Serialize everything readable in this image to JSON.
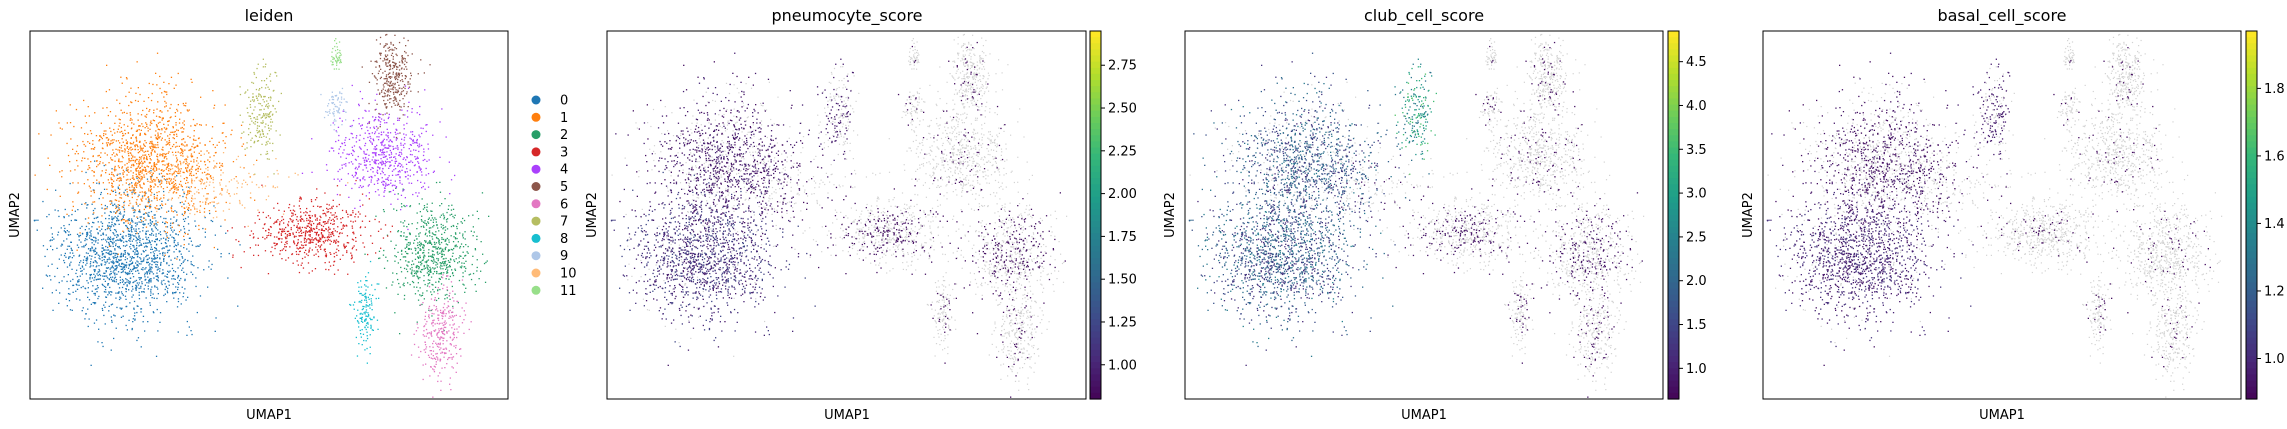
{
  "figure": {
    "background": "#ffffff"
  },
  "chart_data": [
    {
      "type": "scatter",
      "embedding": "umap",
      "title": "leiden",
      "xlabel": "UMAP1",
      "ylabel": "UMAP2",
      "color_by": "categorical",
      "legend": {
        "placement": "right, outside plot",
        "entries": [
          {
            "label": "0",
            "color": "#1f77b4"
          },
          {
            "label": "1",
            "color": "#ff7f0e"
          },
          {
            "label": "2",
            "color": "#279e68"
          },
          {
            "label": "3",
            "color": "#d62728"
          },
          {
            "label": "4",
            "color": "#aa40fc"
          },
          {
            "label": "5",
            "color": "#8c564b"
          },
          {
            "label": "6",
            "color": "#e377c2"
          },
          {
            "label": "7",
            "color": "#b5bd61"
          },
          {
            "label": "8",
            "color": "#17becf"
          },
          {
            "label": "9",
            "color": "#aec7e8"
          },
          {
            "label": "10",
            "color": "#ffbb78"
          },
          {
            "label": "11",
            "color": "#98df8a"
          }
        ]
      },
      "ticks": "none"
    },
    {
      "type": "scatter",
      "embedding": "umap",
      "title": "pneumocyte_score",
      "xlabel": "UMAP1",
      "ylabel": "UMAP2",
      "color_by": "continuous",
      "colormap": "viridis",
      "background_point_color": "#d3d3d3",
      "colorbar": {
        "range": [
          0.8,
          2.95
        ],
        "ticks": [
          1.0,
          1.25,
          1.5,
          1.75,
          2.0,
          2.25,
          2.5,
          2.75
        ],
        "tick_labels": [
          "1.00",
          "1.25",
          "1.50",
          "1.75",
          "2.00",
          "2.25",
          "2.50",
          "2.75"
        ]
      },
      "ticks": "none"
    },
    {
      "type": "scatter",
      "embedding": "umap",
      "title": "club_cell_score",
      "xlabel": "UMAP1",
      "ylabel": "UMAP2",
      "color_by": "continuous",
      "colormap": "viridis",
      "background_point_color": "#d3d3d3",
      "colorbar": {
        "range": [
          0.65,
          4.85
        ],
        "ticks": [
          1.0,
          1.5,
          2.0,
          2.5,
          3.0,
          3.5,
          4.0,
          4.5
        ],
        "tick_labels": [
          "1.0",
          "1.5",
          "2.0",
          "2.5",
          "3.0",
          "3.5",
          "4.0",
          "4.5"
        ]
      },
      "ticks": "none"
    },
    {
      "type": "scatter",
      "embedding": "umap",
      "title": "basal_cell_score",
      "xlabel": "UMAP1",
      "ylabel": "UMAP2",
      "color_by": "continuous",
      "colormap": "viridis",
      "background_point_color": "#d3d3d3",
      "colorbar": {
        "range": [
          0.88,
          1.97
        ],
        "ticks": [
          1.0,
          1.2,
          1.4,
          1.6,
          1.8
        ],
        "tick_labels": [
          "1.0",
          "1.2",
          "1.4",
          "1.6",
          "1.8"
        ]
      },
      "ticks": "none"
    }
  ]
}
